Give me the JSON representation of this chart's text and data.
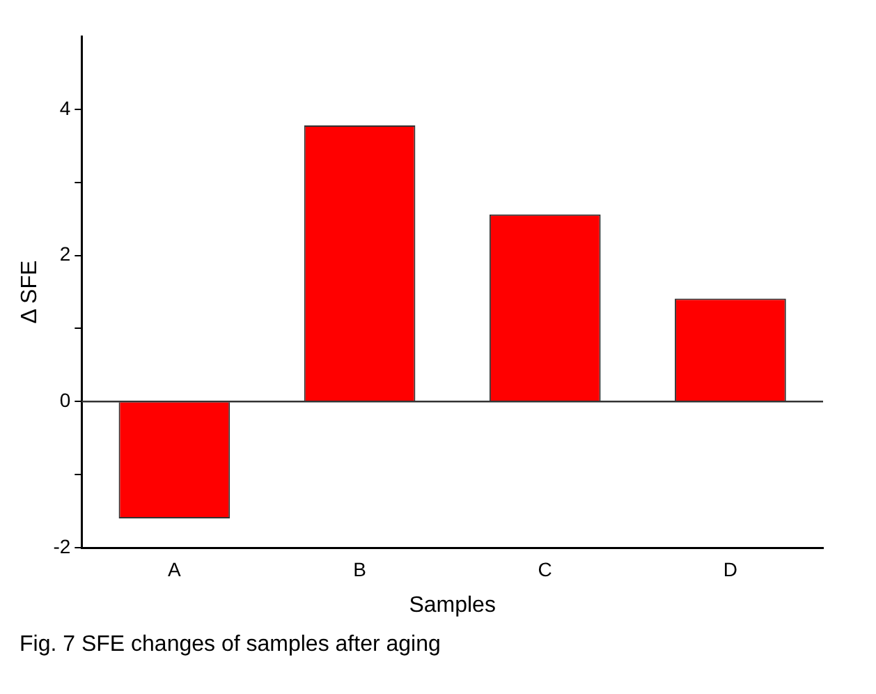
{
  "chart_data": {
    "type": "bar",
    "xlabel": "Samples",
    "ylabel": "Δ SFE",
    "categories": [
      "A",
      "B",
      "C",
      "D"
    ],
    "values": [
      -1.6,
      3.78,
      2.56,
      1.41
    ],
    "color": "#ff0000",
    "ylim": [
      -2,
      5
    ],
    "yticks": [
      -2,
      {
        "value": -1,
        "label": null
      },
      0,
      {
        "value": 1,
        "label": null
      },
      2,
      {
        "value": 3,
        "label": null
      },
      4
    ],
    "ref_lines": [
      {
        "axis": "y",
        "value": 0,
        "label": null
      }
    ],
    "grid": false,
    "legend": false,
    "annotations": [
      "Fig. 7 SFE changes of samples after aging"
    ]
  }
}
